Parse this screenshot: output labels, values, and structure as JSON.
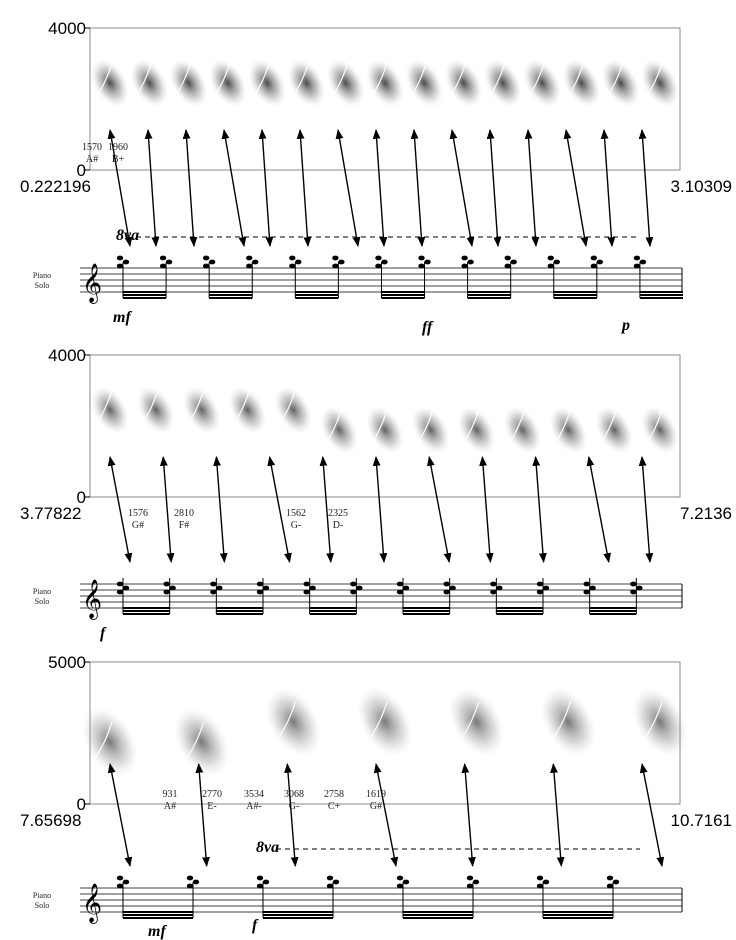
{
  "panels": [
    {
      "y_max": "4000",
      "y_min": "0",
      "x_start": "0.222196",
      "x_end": "3.10309",
      "staff_label": "Piano Solo",
      "octave": "8va",
      "annotations": [
        {
          "freq": "1570",
          "note": "A#"
        },
        {
          "freq": "1960",
          "note": "B+"
        }
      ],
      "dynamics": [
        "mf",
        "ff",
        "p"
      ]
    },
    {
      "y_max": "4000",
      "y_min": "0",
      "x_start": "3.77822",
      "x_end": "7.2136",
      "staff_label": "Piano Solo",
      "annotations": [
        {
          "freq": "1576",
          "note": "G#"
        },
        {
          "freq": "2810",
          "note": "F#"
        },
        {
          "freq": "1562",
          "note": "G-"
        },
        {
          "freq": "2325",
          "note": "D-"
        }
      ],
      "dynamics": [
        "f"
      ]
    },
    {
      "y_max": "5000",
      "y_min": "0",
      "x_start": "7.65698",
      "x_end": "10.7161",
      "staff_label": "Piano Solo",
      "octave": "8va",
      "annotations": [
        {
          "freq": "931",
          "note": "A#"
        },
        {
          "freq": "2770",
          "note": "E-"
        },
        {
          "freq": "3534",
          "note": "A#-"
        },
        {
          "freq": "3068",
          "note": "G-"
        },
        {
          "freq": "2758",
          "note": "C+"
        },
        {
          "freq": "1619",
          "note": "G#"
        }
      ],
      "dynamics": [
        "mf",
        "f"
      ]
    }
  ]
}
